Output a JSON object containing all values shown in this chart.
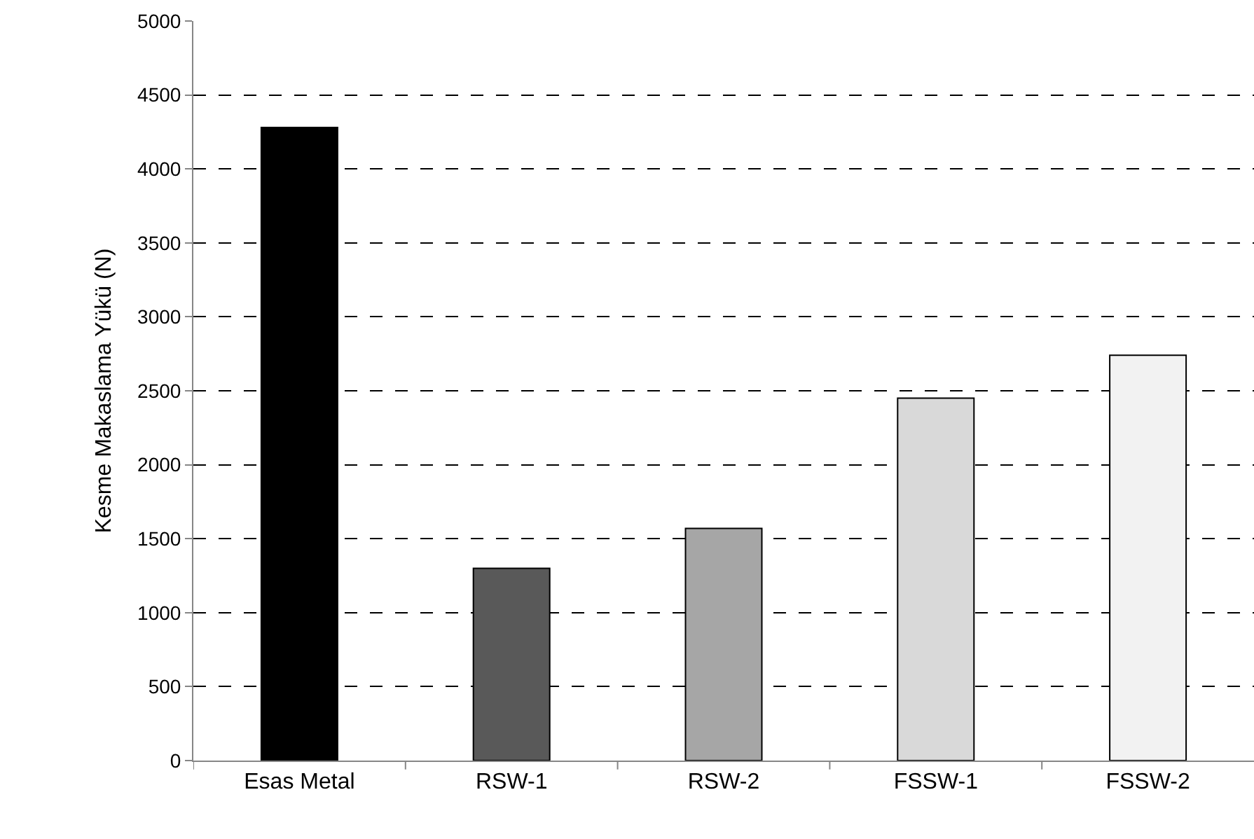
{
  "chart_data": {
    "type": "bar",
    "ylabel": "Kesme Makaslama Yükü (N)",
    "categories": [
      "Esas Metal",
      "RSW-1",
      "RSW-2",
      "FSSW-1",
      "FSSW-2"
    ],
    "values": [
      4280,
      1300,
      1570,
      2450,
      2740
    ],
    "colors": [
      "#000000",
      "#595959",
      "#a6a6a6",
      "#d9d9d9",
      "#f2f2f2"
    ],
    "ylim": [
      0,
      5000
    ],
    "yticks": [
      0,
      500,
      1000,
      1500,
      2000,
      2500,
      3000,
      3500,
      4000,
      4500,
      5000
    ],
    "grid": "y",
    "line_style": "dashed",
    "legend": false
  }
}
